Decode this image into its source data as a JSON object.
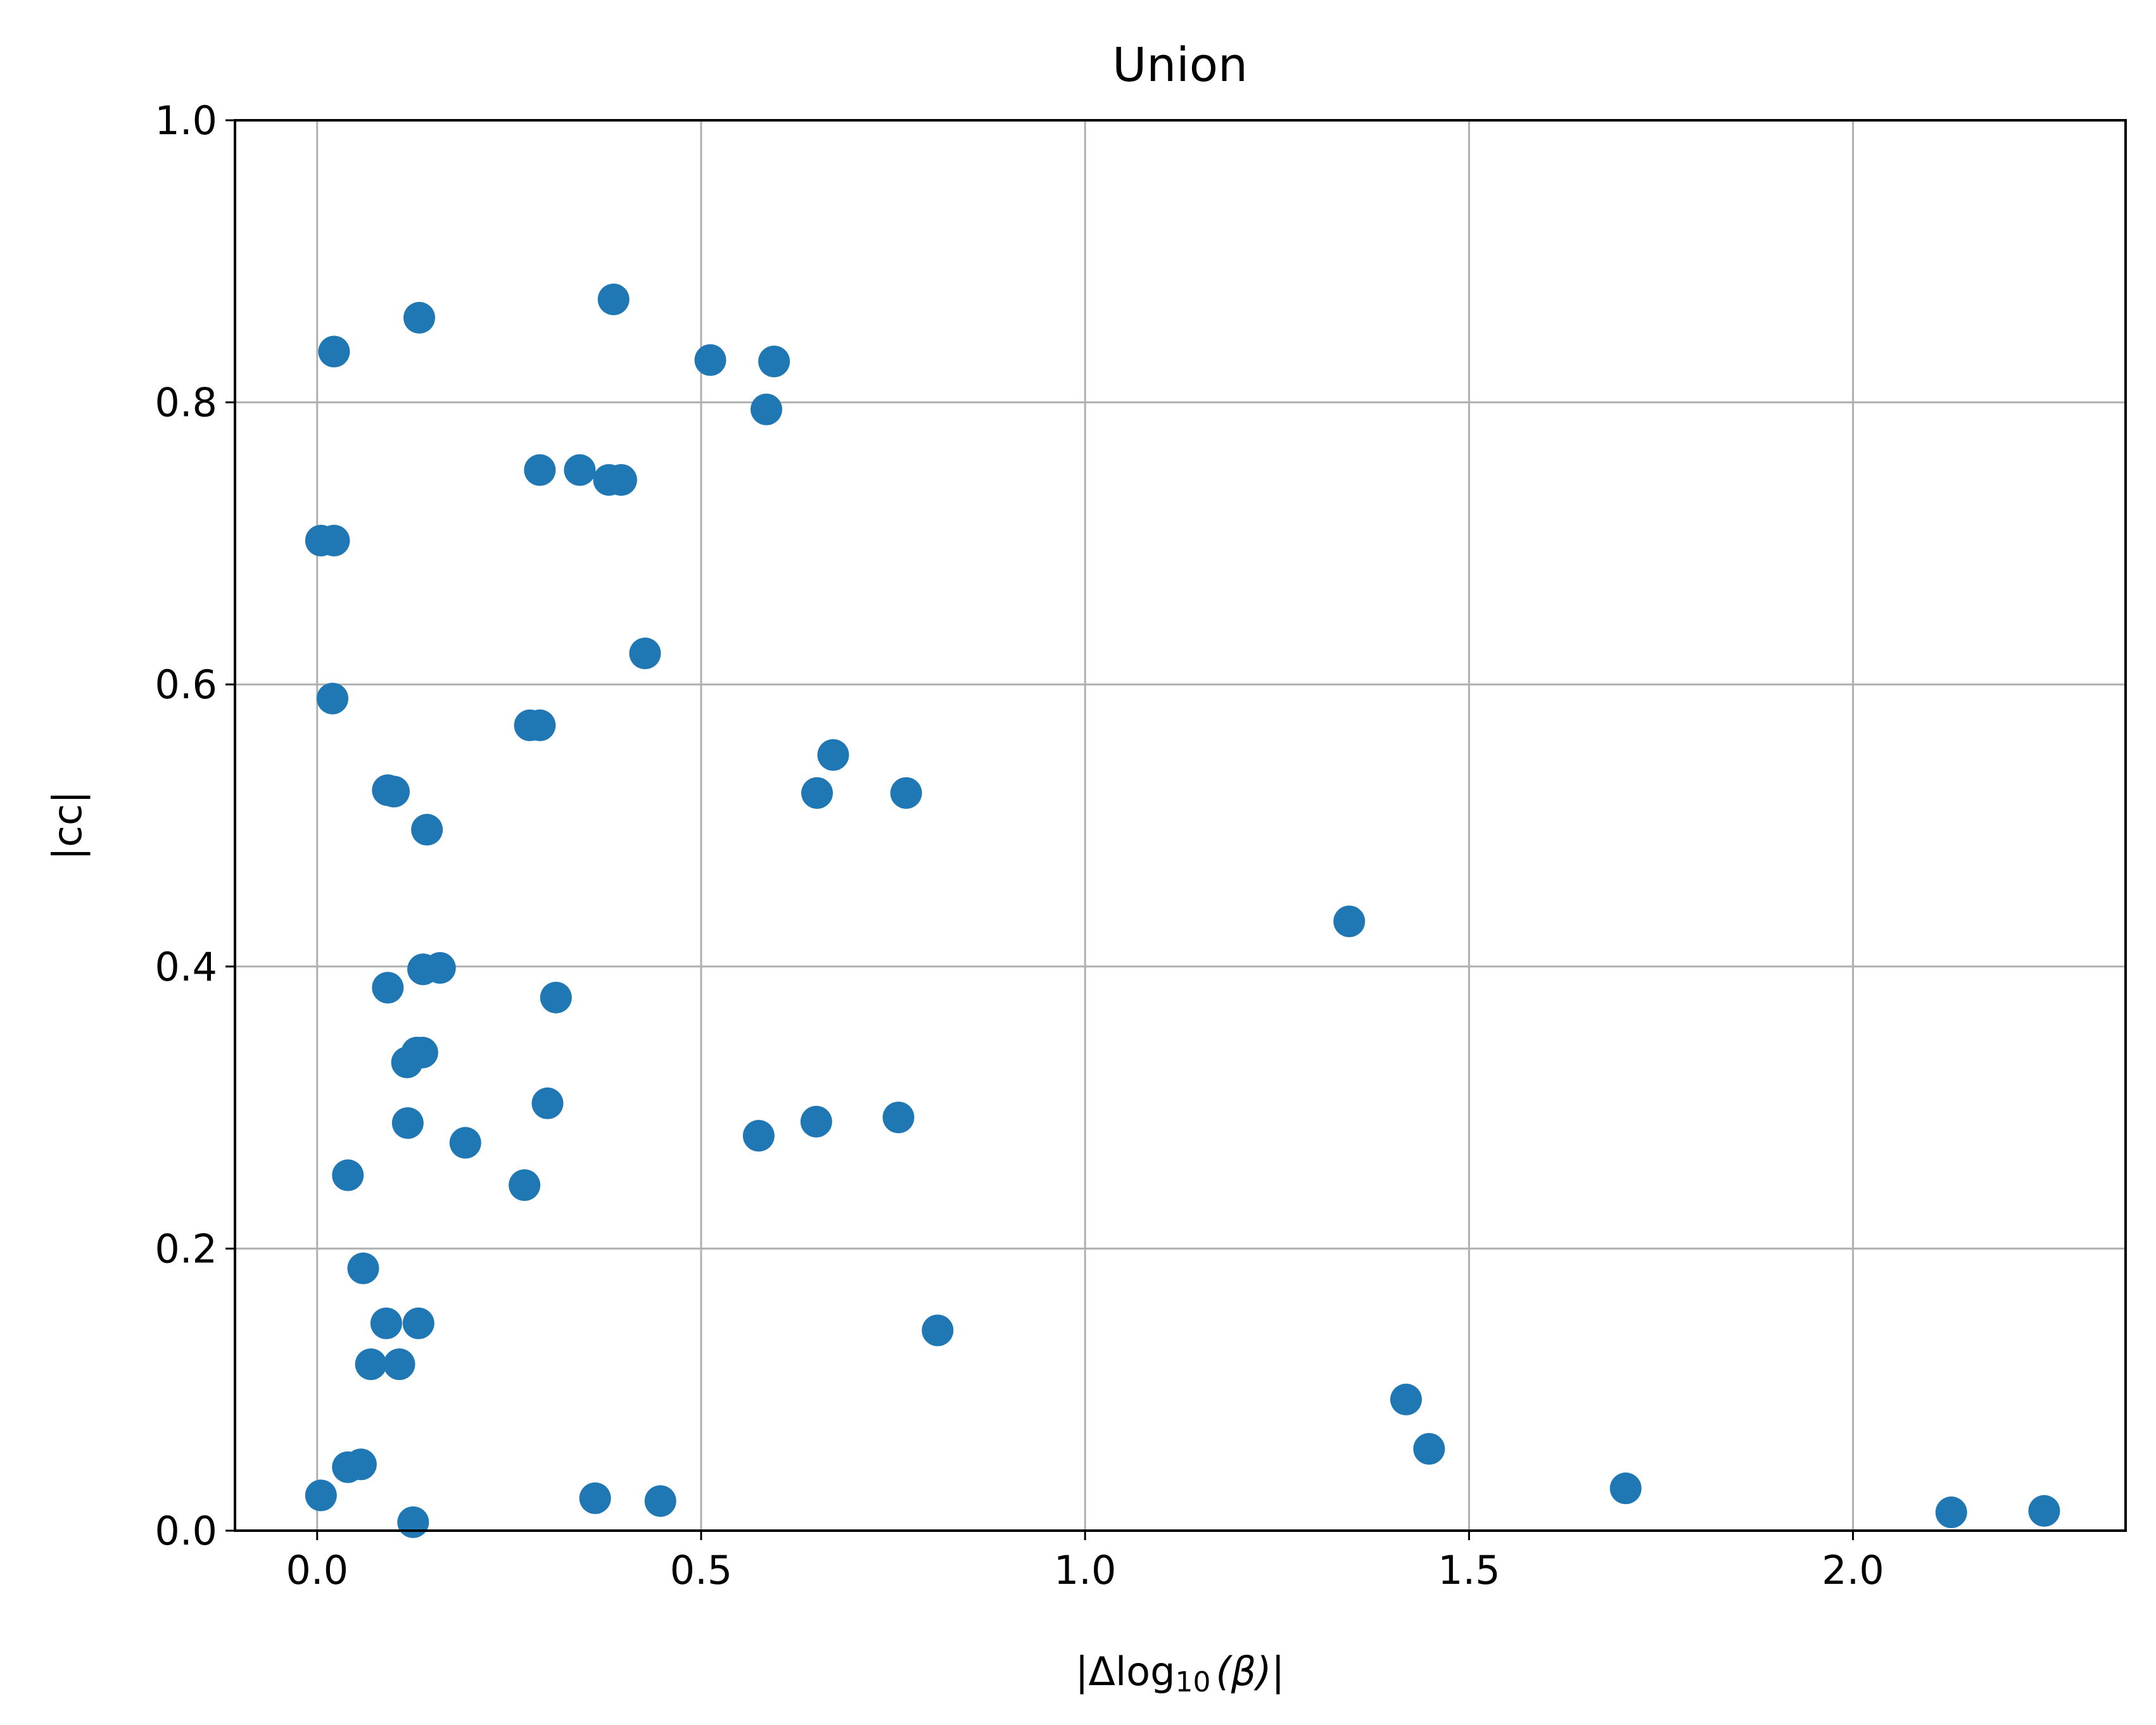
{
  "chart_data": {
    "type": "scatter",
    "title": "Union",
    "xlabel_parts": {
      "pre": "|Δlog",
      "sub": "10",
      "post": "(β)|"
    },
    "ylabel": "|cc|",
    "xlim": [
      -0.107,
      2.355
    ],
    "ylim": [
      0.0,
      1.0
    ],
    "xticks": [
      0.0,
      0.5,
      1.0,
      1.5,
      2.0
    ],
    "xtick_labels": [
      "0.0",
      "0.5",
      "1.0",
      "1.5",
      "2.0"
    ],
    "yticks": [
      0.0,
      0.2,
      0.4,
      0.6,
      0.8,
      1.0
    ],
    "ytick_labels": [
      "0.0",
      "0.2",
      "0.4",
      "0.6",
      "0.8",
      "1.0"
    ],
    "grid": true,
    "marker_color": "#1f77b4",
    "points": [
      {
        "x": 0.022,
        "y": 0.836
      },
      {
        "x": 0.133,
        "y": 0.86
      },
      {
        "x": 0.386,
        "y": 0.873
      },
      {
        "x": 0.512,
        "y": 0.83
      },
      {
        "x": 0.595,
        "y": 0.829
      },
      {
        "x": 0.585,
        "y": 0.795
      },
      {
        "x": 0.29,
        "y": 0.752
      },
      {
        "x": 0.342,
        "y": 0.752
      },
      {
        "x": 0.38,
        "y": 0.745
      },
      {
        "x": 0.396,
        "y": 0.745
      },
      {
        "x": 0.005,
        "y": 0.702
      },
      {
        "x": 0.022,
        "y": 0.702
      },
      {
        "x": 0.427,
        "y": 0.622
      },
      {
        "x": 0.02,
        "y": 0.59
      },
      {
        "x": 0.277,
        "y": 0.571
      },
      {
        "x": 0.29,
        "y": 0.571
      },
      {
        "x": 0.672,
        "y": 0.55
      },
      {
        "x": 0.092,
        "y": 0.525
      },
      {
        "x": 0.1,
        "y": 0.524
      },
      {
        "x": 0.651,
        "y": 0.523
      },
      {
        "x": 0.767,
        "y": 0.523
      },
      {
        "x": 0.143,
        "y": 0.497
      },
      {
        "x": 1.344,
        "y": 0.432
      },
      {
        "x": 0.138,
        "y": 0.398
      },
      {
        "x": 0.16,
        "y": 0.399
      },
      {
        "x": 0.092,
        "y": 0.385
      },
      {
        "x": 0.311,
        "y": 0.378
      },
      {
        "x": 0.13,
        "y": 0.339
      },
      {
        "x": 0.137,
        "y": 0.339
      },
      {
        "x": 0.117,
        "y": 0.332
      },
      {
        "x": 0.3,
        "y": 0.303
      },
      {
        "x": 0.757,
        "y": 0.293
      },
      {
        "x": 0.65,
        "y": 0.29
      },
      {
        "x": 0.118,
        "y": 0.289
      },
      {
        "x": 0.575,
        "y": 0.28
      },
      {
        "x": 0.193,
        "y": 0.275
      },
      {
        "x": 0.27,
        "y": 0.245
      },
      {
        "x": 0.04,
        "y": 0.252
      },
      {
        "x": 0.06,
        "y": 0.186
      },
      {
        "x": 0.09,
        "y": 0.147
      },
      {
        "x": 0.132,
        "y": 0.147
      },
      {
        "x": 0.808,
        "y": 0.142
      },
      {
        "x": 0.07,
        "y": 0.118
      },
      {
        "x": 0.107,
        "y": 0.118
      },
      {
        "x": 1.418,
        "y": 0.093
      },
      {
        "x": 1.448,
        "y": 0.058
      },
      {
        "x": 0.04,
        "y": 0.045
      },
      {
        "x": 0.057,
        "y": 0.047
      },
      {
        "x": 1.704,
        "y": 0.03
      },
      {
        "x": 0.005,
        "y": 0.025
      },
      {
        "x": 0.362,
        "y": 0.023
      },
      {
        "x": 0.447,
        "y": 0.021
      },
      {
        "x": 2.128,
        "y": 0.013
      },
      {
        "x": 2.249,
        "y": 0.014
      },
      {
        "x": 0.125,
        "y": 0.006
      }
    ]
  }
}
